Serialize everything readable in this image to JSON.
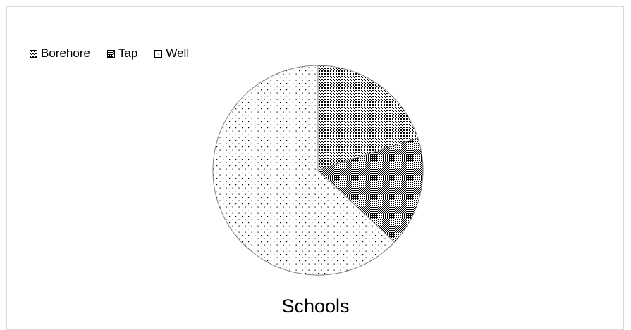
{
  "chart_data": {
    "type": "pie",
    "title": "Schools",
    "categories": [
      "Borehore",
      "Tap",
      "Well"
    ],
    "values": [
      20,
      17,
      63
    ],
    "start_angle_deg": 0,
    "direction": "clockwise",
    "legend_position": "top-left",
    "patterns": [
      "dense-checker",
      "fine-grid",
      "sparse-dots"
    ],
    "colors": {
      "ink": "#000000",
      "background": "#ffffff",
      "frame": "#d9d9d9",
      "slice_border": "#7f7f7f"
    }
  }
}
